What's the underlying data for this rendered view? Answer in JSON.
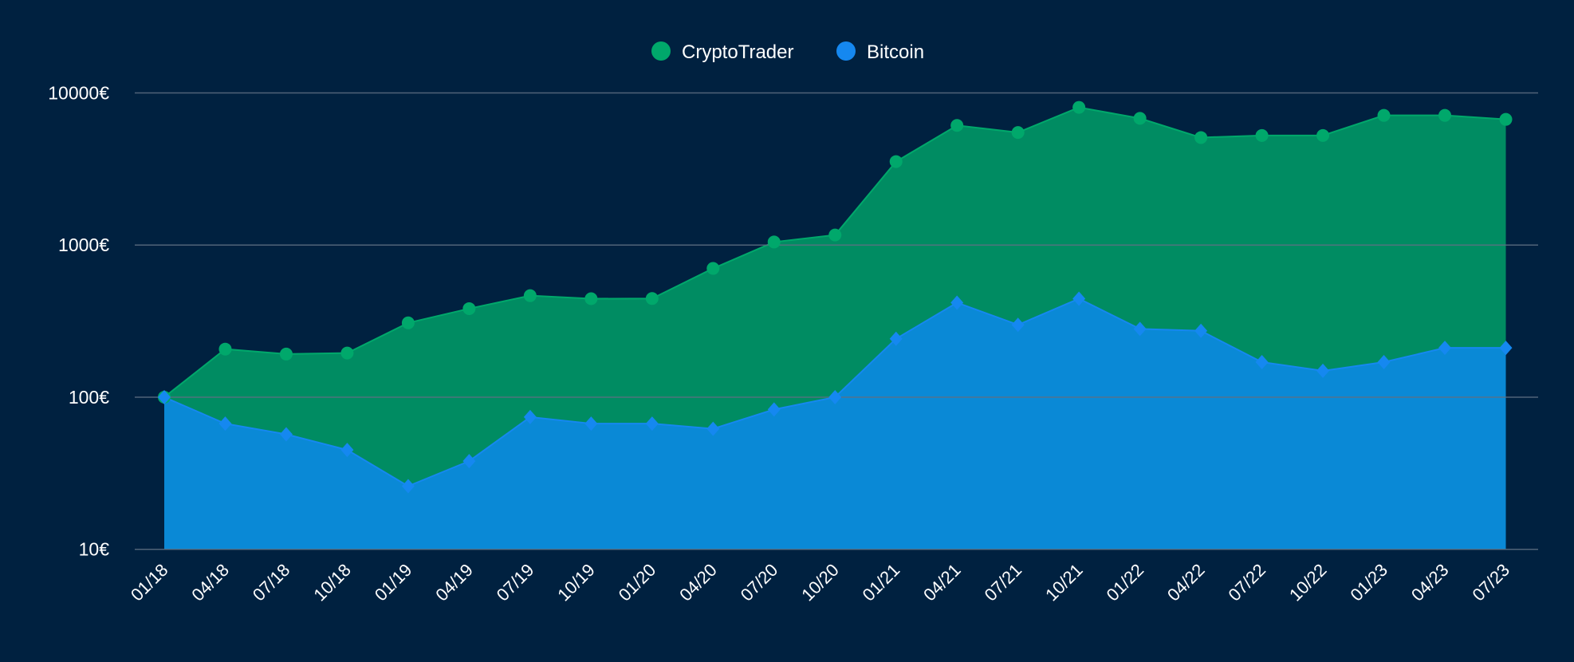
{
  "chart_data": {
    "type": "area",
    "x": [
      "01/18",
      "04/18",
      "07/18",
      "10/18",
      "01/19",
      "04/19",
      "07/19",
      "10/19",
      "01/20",
      "04/20",
      "07/20",
      "10/20",
      "01/21",
      "04/21",
      "07/21",
      "10/21",
      "01/22",
      "04/22",
      "07/22",
      "10/22",
      "01/23",
      "04/23",
      "07/23"
    ],
    "y_scale": "log",
    "ylim": [
      10,
      10000
    ],
    "y_ticks": [
      10,
      100,
      1000,
      10000
    ],
    "y_tick_labels": [
      "10€",
      "100€",
      "1000€",
      "10000€"
    ],
    "grid": true,
    "legend_position": "top-center",
    "series": [
      {
        "name": "CryptoTrader",
        "color": "#008c62",
        "marker_color": "#00a86b",
        "marker": "circle",
        "values": [
          100,
          207,
          192,
          195,
          308,
          382,
          465,
          444,
          445,
          702,
          1047,
          1164,
          3537,
          6113,
          5495,
          8035,
          6804,
          5090,
          5250,
          5250,
          7117,
          7117,
          6700
        ]
      },
      {
        "name": "Bitcoin",
        "color": "#0a89d6",
        "marker_color": "#1588f0",
        "marker": "diamond",
        "values": [
          100,
          67,
          57,
          45,
          26,
          38,
          74,
          67,
          67,
          62,
          83,
          100,
          242,
          418,
          299,
          444,
          281,
          273,
          170,
          149,
          170,
          211,
          211
        ]
      }
    ]
  },
  "colors": {
    "background": "#002140",
    "grid": "#5f6f82"
  }
}
